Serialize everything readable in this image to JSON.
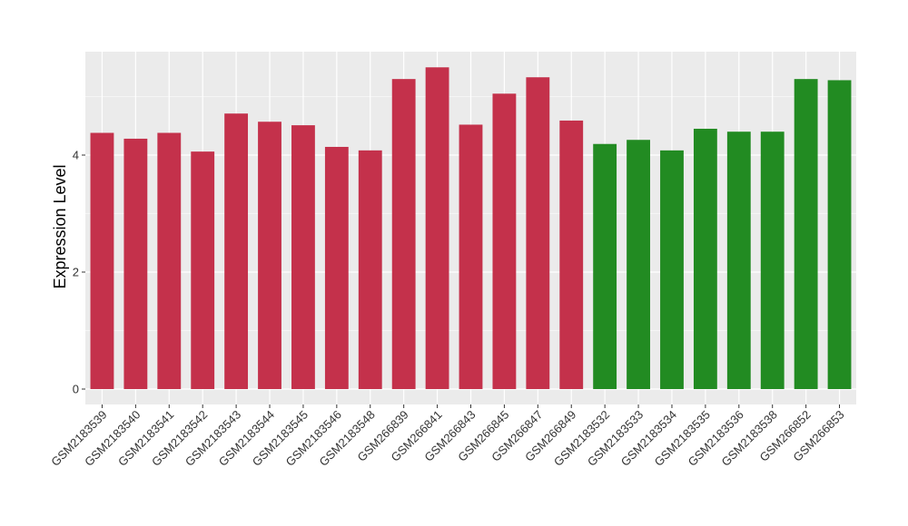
{
  "chart_data": {
    "type": "bar",
    "title": "",
    "xlabel": "",
    "ylabel": "Expression Level",
    "ylim": [
      0,
      5.75
    ],
    "yticks": [
      0,
      2,
      4
    ],
    "grid": true,
    "legend": "none",
    "colors": {
      "group1": "#c4314b",
      "group2": "#228b22",
      "panel": "#ebebeb",
      "grid": "#ffffff"
    },
    "categories": [
      "GSM2183539",
      "GSM2183540",
      "GSM2183541",
      "GSM2183542",
      "GSM2183543",
      "GSM2183544",
      "GSM2183545",
      "GSM2183546",
      "GSM2183548",
      "GSM266839",
      "GSM266841",
      "GSM266843",
      "GSM266845",
      "GSM266847",
      "GSM266849",
      "GSM2183532",
      "GSM2183533",
      "GSM2183534",
      "GSM2183535",
      "GSM2183536",
      "GSM2183538",
      "GSM266852",
      "GSM266853"
    ],
    "values": [
      4.38,
      4.28,
      4.38,
      4.06,
      4.71,
      4.57,
      4.51,
      4.14,
      4.08,
      5.3,
      5.5,
      4.52,
      5.05,
      5.33,
      4.59,
      4.19,
      4.26,
      4.08,
      4.45,
      4.4,
      4.4,
      5.3,
      5.28
    ],
    "groups": [
      "group1",
      "group1",
      "group1",
      "group1",
      "group1",
      "group1",
      "group1",
      "group1",
      "group1",
      "group1",
      "group1",
      "group1",
      "group1",
      "group1",
      "group1",
      "group2",
      "group2",
      "group2",
      "group2",
      "group2",
      "group2",
      "group2",
      "group2"
    ]
  }
}
